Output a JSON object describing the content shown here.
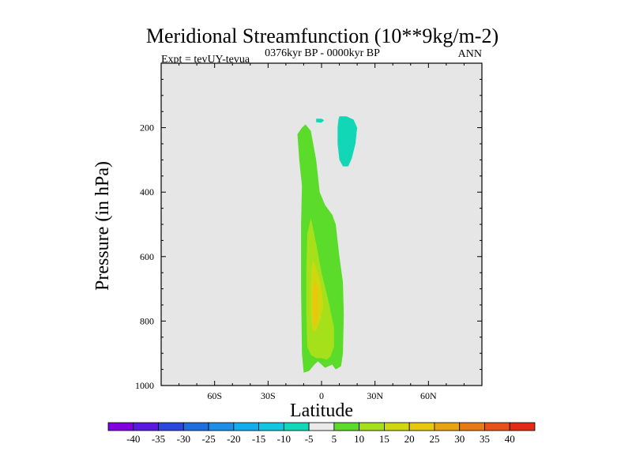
{
  "chart_data": {
    "type": "contour",
    "title": "Meridional Streamfunction (10**9kg/m-2)",
    "subtitle": "0376kyr BP - 0000kyr BP",
    "left_label": "Expt = tevUY-tevua",
    "right_label": "ANN",
    "xlabel": "Latitude",
    "ylabel": "Pressure (in hPa)",
    "xlim": [
      -90,
      90
    ],
    "ylim": [
      1000,
      0
    ],
    "x_ticks": [
      {
        "value": -60,
        "label": "60S"
      },
      {
        "value": -30,
        "label": "30S"
      },
      {
        "value": 0,
        "label": "0"
      },
      {
        "value": 30,
        "label": "30N"
      },
      {
        "value": 60,
        "label": "60N"
      }
    ],
    "y_ticks": [
      {
        "value": 200,
        "label": "200"
      },
      {
        "value": 400,
        "label": "400"
      },
      {
        "value": 600,
        "label": "600"
      },
      {
        "value": 800,
        "label": "800"
      },
      {
        "value": 1000,
        "label": "1000"
      }
    ],
    "background_color": "#e6e6e6",
    "contour_regions": [
      {
        "level": "5 to 10",
        "color": "#5bdc2a",
        "points": [
          [
            -13.5,
            220
          ],
          [
            -11,
            200
          ],
          [
            -9,
            190
          ],
          [
            -6,
            210
          ],
          [
            -3,
            300
          ],
          [
            -1,
            400
          ],
          [
            2,
            440
          ],
          [
            6,
            470
          ],
          [
            8,
            500
          ],
          [
            10,
            600
          ],
          [
            12,
            680
          ],
          [
            12.5,
            780
          ],
          [
            12,
            900
          ],
          [
            11,
            940
          ],
          [
            8,
            950
          ],
          [
            6,
            935
          ],
          [
            4,
            940
          ],
          [
            2,
            945
          ],
          [
            0,
            935
          ],
          [
            -2,
            925
          ],
          [
            -4,
            935
          ],
          [
            -7,
            955
          ],
          [
            -10,
            960
          ],
          [
            -11,
            900
          ],
          [
            -11.5,
            700
          ],
          [
            -11.5,
            500
          ],
          [
            -11,
            380
          ],
          [
            -12.5,
            300
          ]
        ]
      },
      {
        "level": "10 to 15",
        "color": "#a6e01a",
        "points": [
          [
            -6,
            480
          ],
          [
            -3,
            560
          ],
          [
            0,
            650
          ],
          [
            4,
            740
          ],
          [
            7,
            820
          ],
          [
            7,
            880
          ],
          [
            5,
            910
          ],
          [
            3,
            920
          ],
          [
            0,
            915
          ],
          [
            -3,
            915
          ],
          [
            -6,
            905
          ],
          [
            -8,
            880
          ],
          [
            -8.5,
            780
          ],
          [
            -8.5,
            640
          ],
          [
            -8,
            530
          ]
        ]
      },
      {
        "level": "15 to 20",
        "color": "#cfd80f",
        "points": [
          [
            -5,
            610
          ],
          [
            -2,
            650
          ],
          [
            0,
            700
          ],
          [
            1,
            760
          ],
          [
            -1,
            800
          ],
          [
            -3,
            830
          ],
          [
            -5,
            830
          ],
          [
            -6,
            780
          ],
          [
            -6,
            680
          ]
        ]
      },
      {
        "level": "20 to 25",
        "color": "#e8c80c",
        "points": [
          [
            -3.5,
            670
          ],
          [
            -2,
            700
          ],
          [
            -2,
            780
          ],
          [
            -3,
            820
          ],
          [
            -4.5,
            810
          ],
          [
            -5,
            760
          ],
          [
            -4.8,
            700
          ]
        ]
      },
      {
        "level": "-5 to -10",
        "color": "#12d7b6",
        "points": [
          [
            -3,
            172
          ],
          [
            0,
            172
          ],
          [
            1.5,
            177
          ],
          [
            0,
            184
          ],
          [
            -3,
            183
          ]
        ]
      },
      {
        "level": "-5 to -10",
        "color": "#12d7b6",
        "points": [
          [
            10,
            165
          ],
          [
            14,
            165
          ],
          [
            18,
            175
          ],
          [
            20,
            200
          ],
          [
            19,
            250
          ],
          [
            17,
            295
          ],
          [
            15,
            320
          ],
          [
            12,
            320
          ],
          [
            10,
            300
          ],
          [
            9,
            250
          ],
          [
            9,
            200
          ],
          [
            9.5,
            175
          ]
        ]
      }
    ],
    "colorbar": {
      "levels": [
        "-40",
        "-35",
        "-30",
        "-25",
        "-20",
        "-15",
        "-10",
        "-5",
        "5",
        "10",
        "15",
        "20",
        "25",
        "30",
        "35",
        "40"
      ],
      "colors": [
        "#8000e0",
        "#5a18e0",
        "#2a48e0",
        "#1e6ee0",
        "#1e8ee6",
        "#10aeec",
        "#10c6e0",
        "#10d8b8",
        "#eaeaea",
        "#5bdc2a",
        "#a6e01a",
        "#cfd80f",
        "#e8c80c",
        "#e8a410",
        "#e87a16",
        "#e8521a",
        "#e22a16"
      ]
    }
  }
}
